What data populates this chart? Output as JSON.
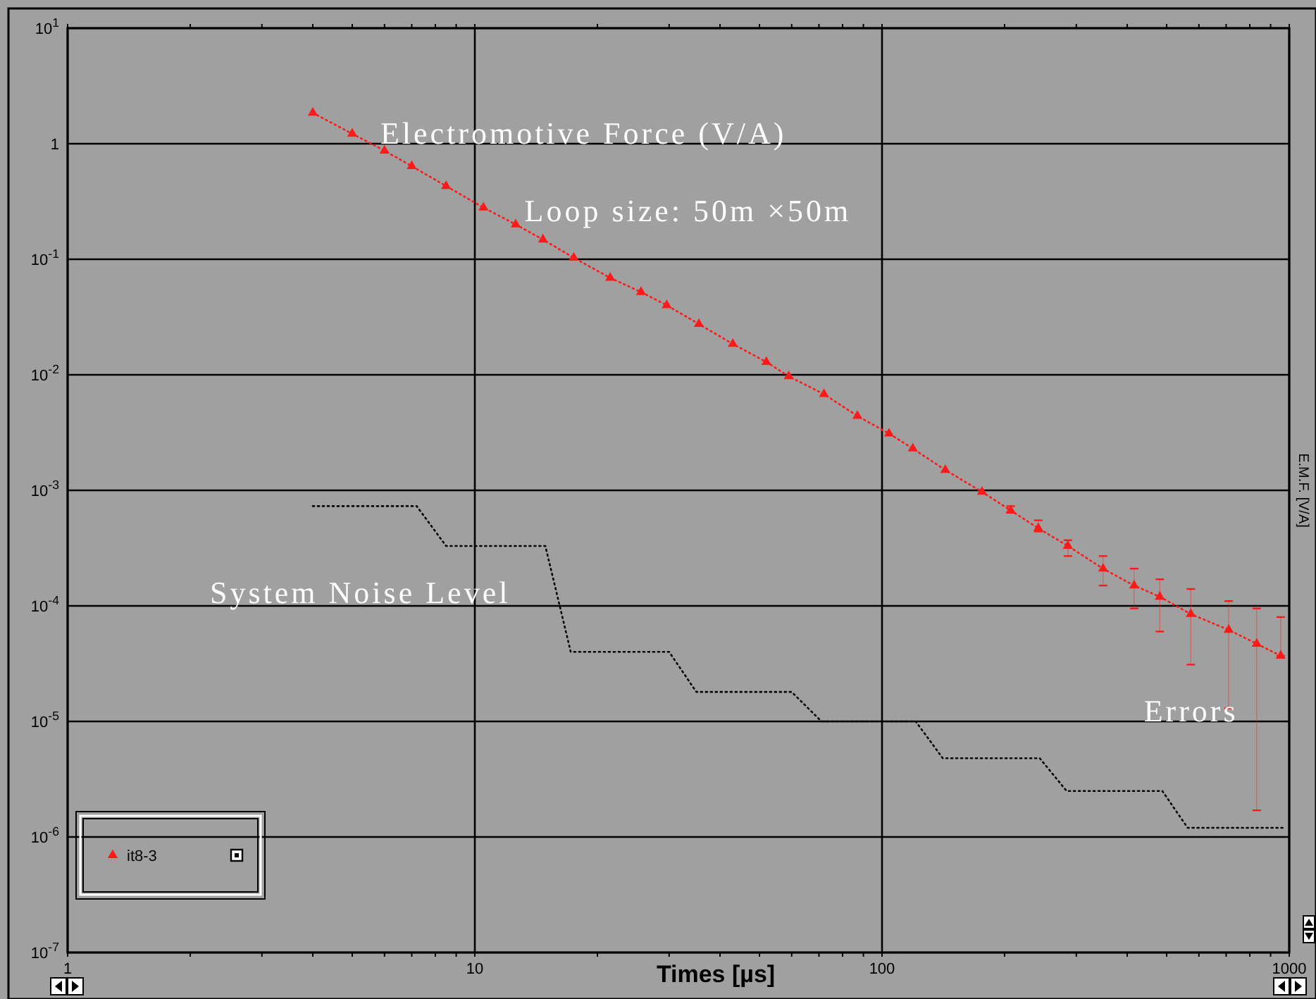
{
  "chart_data": {
    "type": "line",
    "xlabel": "Times [µs]",
    "ylabel": "E.M.F. [V/A]",
    "log": "xy",
    "grid": true,
    "legend": "bottom left",
    "xlim": [
      1,
      1000
    ],
    "ylim": [
      1e-07,
      10
    ],
    "xticks": [
      1,
      {
        "value": 2,
        "label": null
      },
      {
        "value": 3,
        "label": null
      },
      {
        "value": 4,
        "label": null
      },
      {
        "value": 5,
        "label": null
      },
      {
        "value": 6,
        "label": null
      },
      {
        "value": 7,
        "label": null
      },
      {
        "value": 8,
        "label": null
      },
      {
        "value": 9,
        "label": null
      },
      10,
      {
        "value": 20,
        "label": null
      },
      {
        "value": 30,
        "label": null
      },
      {
        "value": 40,
        "label": null
      },
      {
        "value": 50,
        "label": null
      },
      {
        "value": 60,
        "label": null
      },
      {
        "value": 70,
        "label": null
      },
      {
        "value": 80,
        "label": null
      },
      {
        "value": 90,
        "label": null
      },
      100,
      {
        "value": 200,
        "label": null
      },
      {
        "value": 300,
        "label": null
      },
      {
        "value": 400,
        "label": null
      },
      {
        "value": 500,
        "label": null
      },
      {
        "value": 600,
        "label": null
      },
      {
        "value": 700,
        "label": null
      },
      {
        "value": 800,
        "label": null
      },
      {
        "value": 900,
        "label": null
      },
      1000
    ],
    "yticks": [
      {
        "value": 1e-07,
        "label": "10$^{-7}$"
      },
      {
        "value": 1e-06,
        "label": "10$^{-6}$"
      },
      {
        "value": 1e-05,
        "label": "10$^{-5}$"
      },
      {
        "value": 0.0001,
        "label": "10$^{-4}$"
      },
      {
        "value": 0.001,
        "label": "10$^{-3}$"
      },
      {
        "value": 0.01,
        "label": "10$^{-2}$"
      },
      {
        "value": 0.1,
        "label": "10$^{-1}$"
      },
      1,
      {
        "value": 10,
        "label": "10$^{1}$"
      }
    ],
    "series": [
      {
        "name": "it8-3",
        "color": "#ff1a1a",
        "marker": "triangle",
        "line_style": "dotted",
        "x": [
          4,
          5,
          6,
          7,
          8.5,
          10.5,
          12.6,
          14.7,
          17.5,
          21.5,
          25.6,
          29.6,
          35.5,
          43,
          52,
          59,
          72,
          87,
          104,
          119,
          143,
          176,
          207,
          242,
          286,
          349,
          416,
          481,
          573,
          710,
          832,
          953
        ],
        "values": [
          1.85,
          1.22,
          0.87,
          0.64,
          0.43,
          0.28,
          0.2,
          0.148,
          0.103,
          0.069,
          0.052,
          0.04,
          0.0275,
          0.0185,
          0.0129,
          0.0097,
          0.0068,
          0.0044,
          0.0031,
          0.0023,
          0.0015,
          0.00097,
          0.00067,
          0.00047,
          0.00033,
          0.00021,
          0.00015,
          0.00012,
          8.5e-05,
          6.2e-05,
          4.7e-05,
          3.7e-05
        ],
        "errors": [
          null,
          null,
          null,
          null,
          null,
          null,
          null,
          null,
          null,
          null,
          null,
          null,
          null,
          null,
          null,
          null,
          null,
          null,
          null,
          null,
          null,
          null,
          [
            0.00064,
            0.00073
          ],
          [
            0.00044,
            0.00055
          ],
          [
            0.00027,
            0.00037
          ],
          [
            0.00015,
            0.00027
          ],
          [
            9.5e-05,
            0.00021
          ],
          [
            6e-05,
            0.00017
          ],
          [
            3.1e-05,
            0.00014
          ],
          [
            1.3e-05,
            0.00011
          ],
          [
            1.7e-06,
            9.5e-05
          ],
          [
            3.7e-05,
            8e-05
          ]
        ]
      },
      {
        "color": "#000000",
        "marker": "none",
        "line_style": "dotted",
        "x": [
          4,
          7.2,
          8.5,
          14.9,
          17.2,
          30,
          35,
          60,
          71,
          121,
          141,
          244,
          284,
          488,
          563,
          980
        ],
        "values": [
          0.00073,
          0.00073,
          0.00033,
          0.00033,
          4e-05,
          4e-05,
          1.8e-05,
          1.8e-05,
          1e-05,
          1e-05,
          4.8e-06,
          4.8e-06,
          2.5e-06,
          2.5e-06,
          1.2e-06,
          1.2e-06
        ]
      }
    ],
    "annotations": [
      "Electromotive Force (V/A)",
      "Loop size: 50m ×50m",
      "System Noise Level",
      "Errors"
    ]
  }
}
